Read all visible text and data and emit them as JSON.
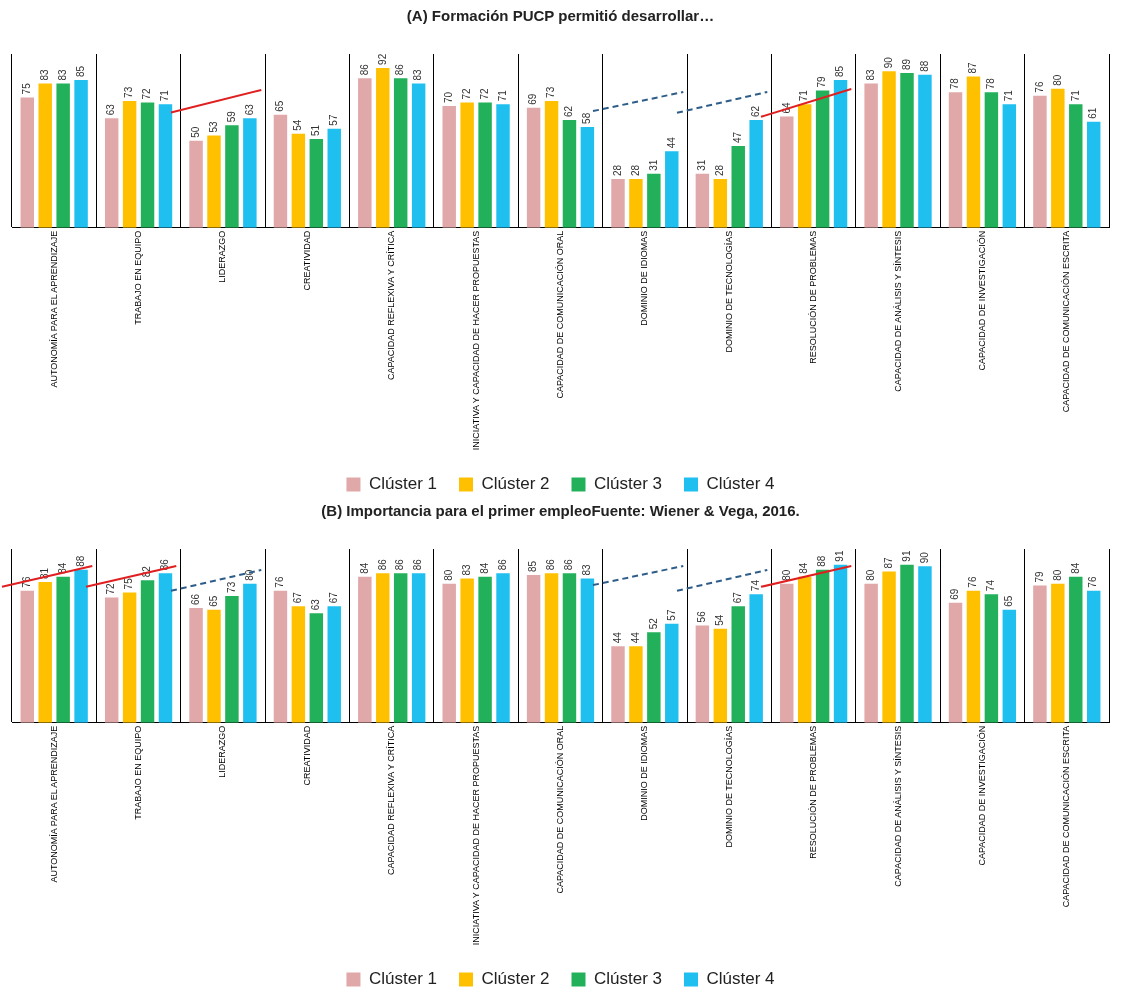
{
  "chart_data": [
    {
      "type": "bar",
      "title": "(A) Formación PUCP permitió desarrollar…",
      "categories": [
        "AUTONOMÍA PARA EL APRENDIZAJE",
        "TRABAJO EN EQUIPO",
        "LIDERAZGO",
        "CREATIVIDAD",
        "CAPACIDAD REFLEXIVA Y CRÍTICA",
        "INICIATIVA Y CAPACIDAD DE HACER PROPUESTAS",
        "CAPACIDAD DE COMUNICACIÓN ORAL",
        "DOMINIO DE IDIOMAS",
        "DOMINIO DE TECNOLOGÍAS",
        "RESOLUCIÓN DE PROBLEMAS",
        "CAPACIDAD DE ANÁLISIS Y SÍNTESIS",
        "CAPACIDAD DE INVESTIGACIÓN",
        "CAPACIDAD DE COMUNICACIÓN ESCRITA"
      ],
      "series": [
        {
          "name": "Clúster 1",
          "color": "#e0a8a8",
          "values": [
            75,
            63,
            50,
            65,
            86,
            70,
            69,
            28,
            31,
            64,
            83,
            78,
            76
          ]
        },
        {
          "name": "Clúster 2",
          "color": "#ffc000",
          "values": [
            83,
            73,
            53,
            54,
            92,
            72,
            73,
            28,
            28,
            71,
            90,
            87,
            80
          ]
        },
        {
          "name": "Clúster 3",
          "color": "#22b05a",
          "values": [
            83,
            72,
            59,
            51,
            86,
            72,
            62,
            31,
            47,
            79,
            89,
            78,
            71
          ]
        },
        {
          "name": "Clúster 4",
          "color": "#1fbff0",
          "values": [
            85,
            71,
            63,
            57,
            83,
            71,
            58,
            44,
            62,
            85,
            88,
            71,
            61
          ]
        }
      ],
      "data_labels": true,
      "grid": "x",
      "legend": "bottom"
    },
    {
      "type": "bar",
      "title": "(B) Importancia para el primer empleoFuente: Wiener & Vega, 2016.",
      "categories": [
        "AUTONOMÍA PARA EL APRENDIZAJE",
        "TRABAJO EN EQUIPO",
        "LIDERAZGO",
        "CREATIVIDAD",
        "CAPACIDAD REFLEXIVA Y CRÍTICA",
        "INICIATIVA Y CAPACIDAD DE HACER PROPUESTAS",
        "CAPACIDAD DE COMUNICACIÓN ORAL",
        "DOMINIO DE IDIOMAS",
        "DOMINIO DE TECNOLOGÍAS",
        "RESOLUCIÓN DE PROBLEMAS",
        "CAPACIDAD DE ANÁLISIS Y SÍNTESIS",
        "CAPACIDAD DE INVESTIGACIÓN",
        "CAPACIDAD DE COMUNICACIÓN ESCRITA"
      ],
      "series": [
        {
          "name": "Clúster 1",
          "color": "#e0a8a8",
          "values": [
            76,
            72,
            66,
            76,
            84,
            80,
            85,
            44,
            56,
            80,
            80,
            69,
            79
          ]
        },
        {
          "name": "Clúster 2",
          "color": "#ffc000",
          "values": [
            81,
            75,
            65,
            67,
            86,
            83,
            86,
            44,
            54,
            84,
            87,
            76,
            80
          ]
        },
        {
          "name": "Clúster 3",
          "color": "#22b05a",
          "values": [
            84,
            82,
            73,
            63,
            86,
            84,
            86,
            52,
            67,
            88,
            91,
            74,
            84
          ]
        },
        {
          "name": "Clúster 4",
          "color": "#1fbff0",
          "values": [
            88,
            86,
            80,
            67,
            86,
            86,
            83,
            57,
            74,
            91,
            90,
            65,
            76
          ]
        }
      ],
      "data_labels": true,
      "grid": "x",
      "legend": "bottom"
    }
  ]
}
